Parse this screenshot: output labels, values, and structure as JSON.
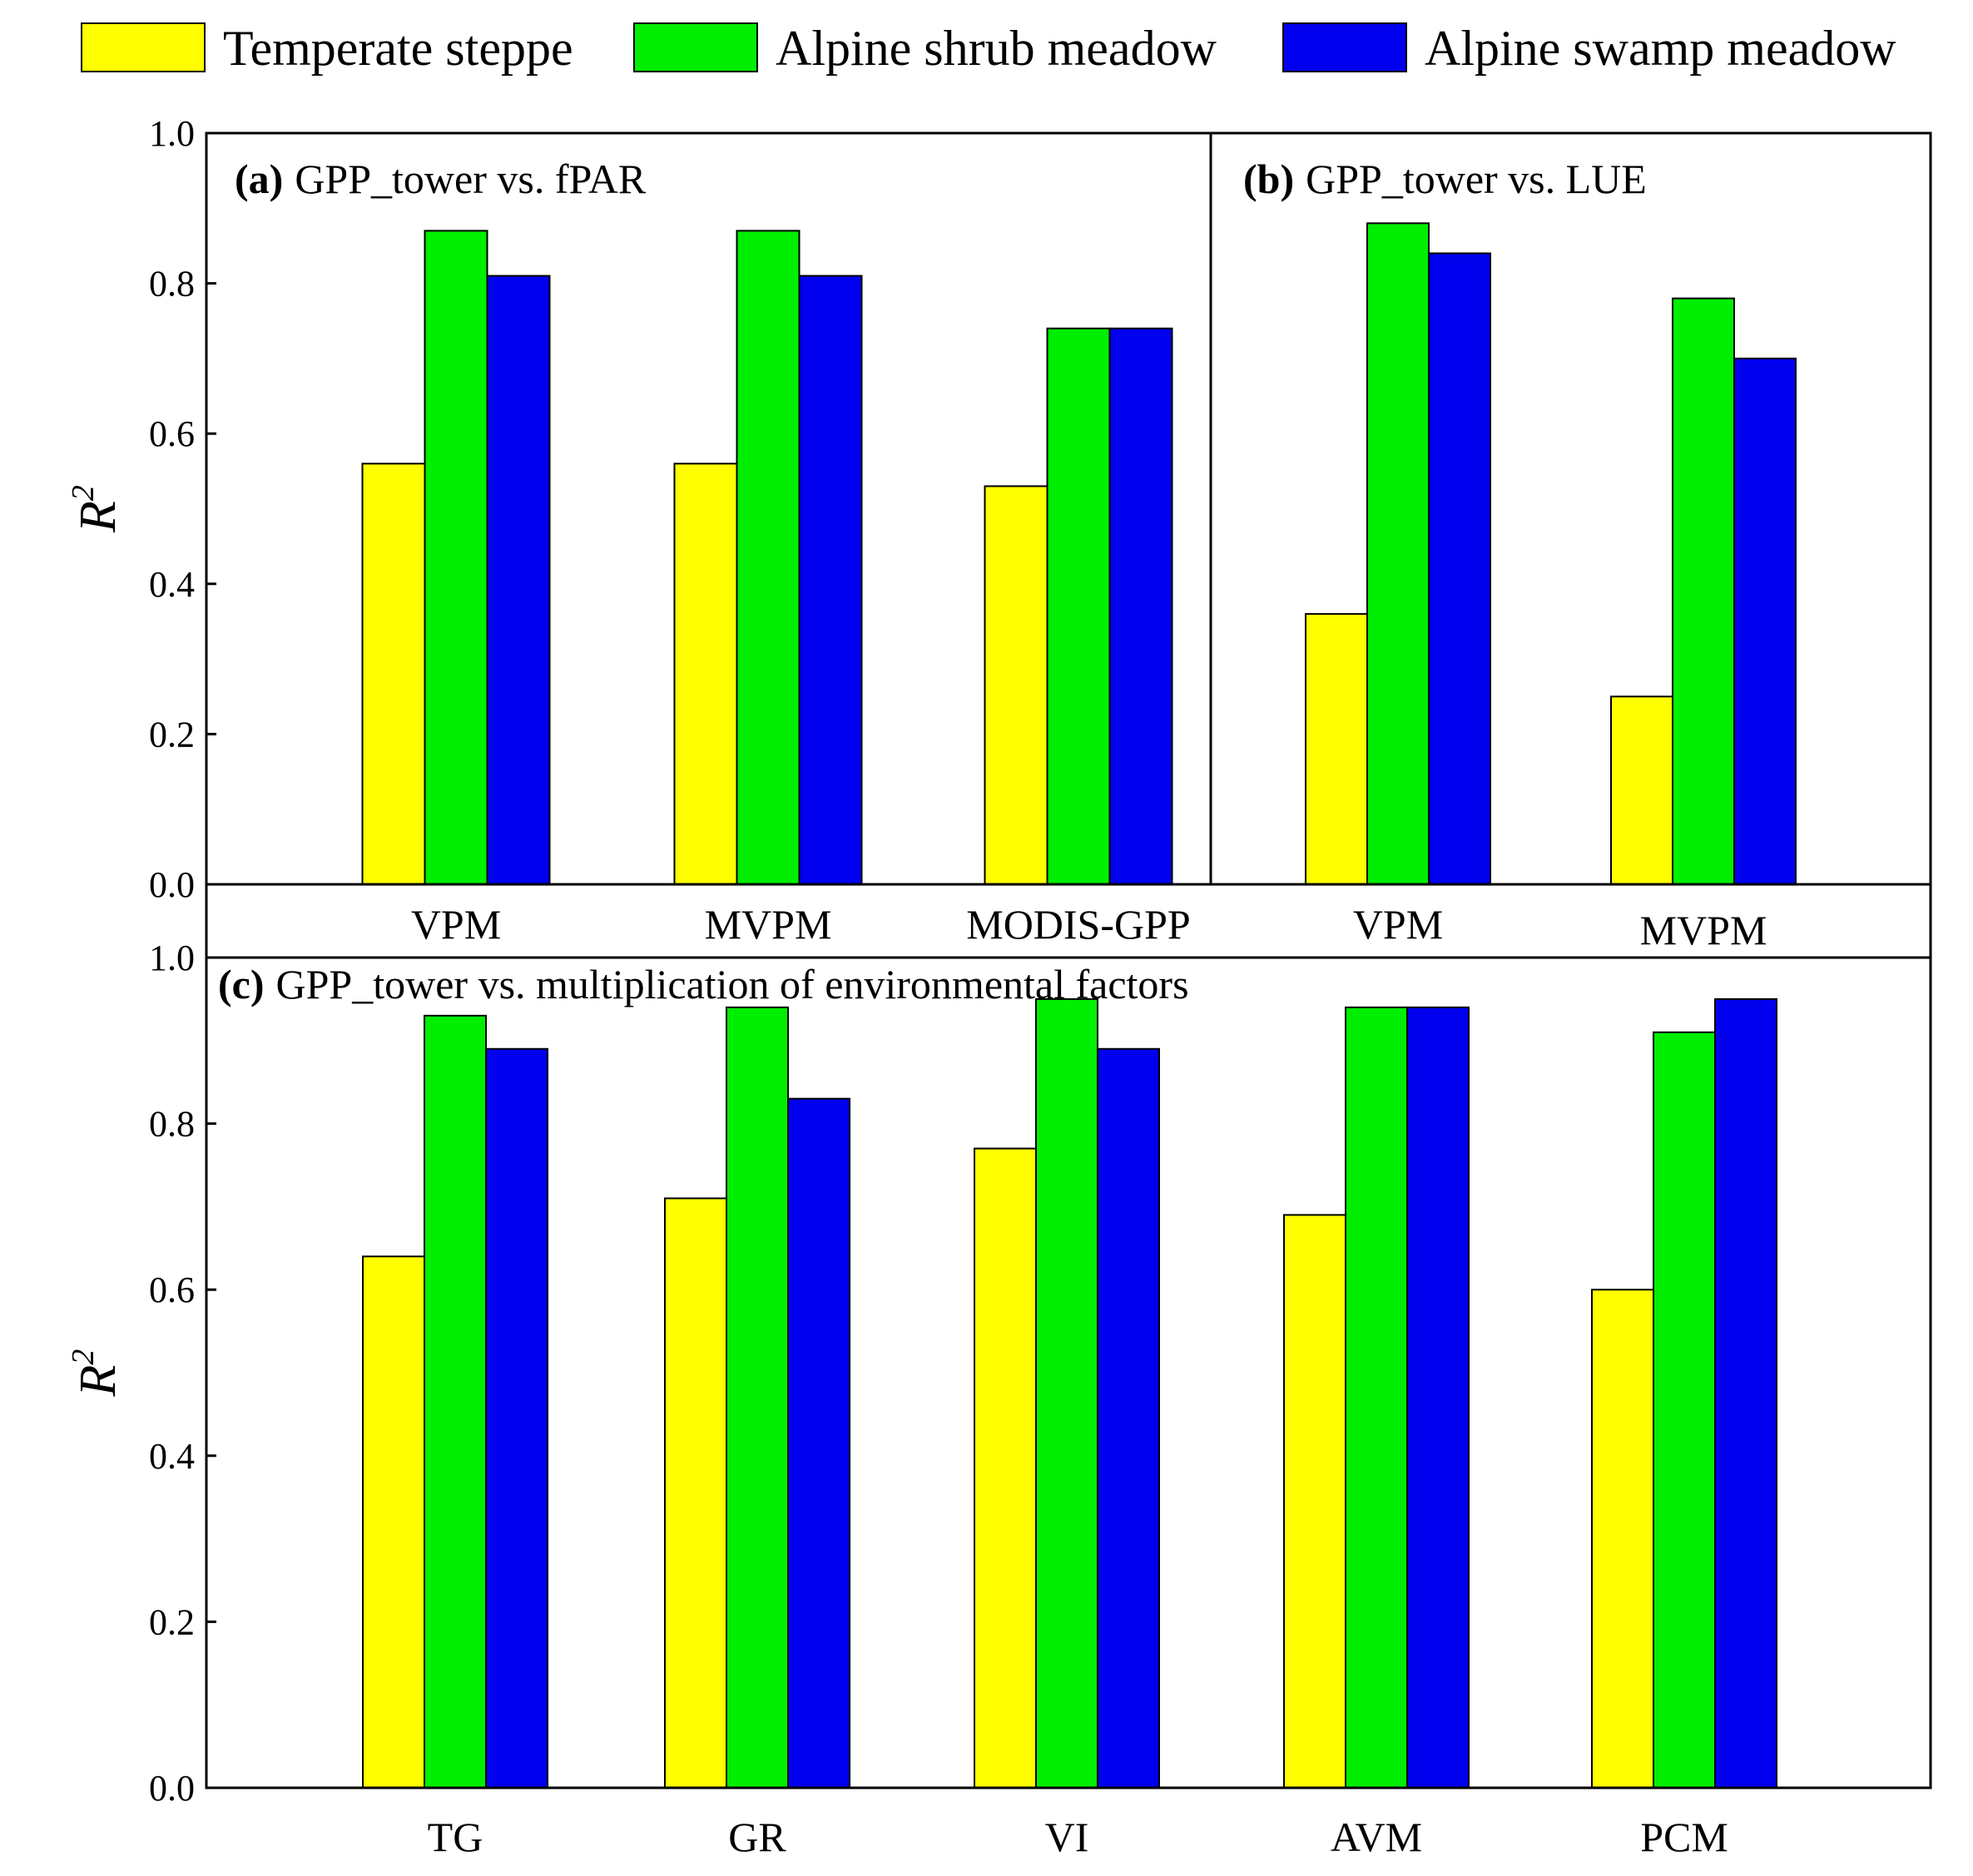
{
  "legend": [
    {
      "label": "Temperate steppe",
      "color": "#ffff00"
    },
    {
      "label": "Alpine shrub meadow",
      "color": "#00ee00"
    },
    {
      "label": "Alpine swamp meadow",
      "color": "#0000ee"
    }
  ],
  "y_axis_label": "R",
  "y_axis_label_sup": "2",
  "chart_data": [
    {
      "id": "a",
      "type": "bar",
      "tag": "(a)",
      "title": "GPP_tower vs. fPAR",
      "ylim": [
        0,
        1.0
      ],
      "yticks": [
        "0.0",
        "0.2",
        "0.4",
        "0.6",
        "0.8",
        "1.0"
      ],
      "ylabel": "R2",
      "categories": [
        "VPM",
        "MVPM",
        "MODIS-GPP"
      ],
      "series": [
        {
          "name": "Temperate steppe",
          "values": [
            0.56,
            0.56,
            0.53
          ]
        },
        {
          "name": "Alpine shrub meadow",
          "values": [
            0.87,
            0.87,
            0.74
          ]
        },
        {
          "name": "Alpine swamp meadow",
          "values": [
            0.81,
            0.81,
            0.74
          ]
        }
      ]
    },
    {
      "id": "b",
      "type": "bar",
      "tag": "(b)",
      "title": "GPP_tower vs. LUE",
      "ylim": [
        0,
        1.0
      ],
      "categories": [
        "VPM",
        "MVPM"
      ],
      "series": [
        {
          "name": "Temperate steppe",
          "values": [
            0.36,
            0.25
          ]
        },
        {
          "name": "Alpine shrub meadow",
          "values": [
            0.88,
            0.78
          ]
        },
        {
          "name": "Alpine swamp meadow",
          "values": [
            0.84,
            0.7
          ]
        }
      ]
    },
    {
      "id": "c",
      "type": "bar",
      "tag": "(c)",
      "title": "GPP_tower vs. multiplication of environmental factors",
      "ylim": [
        0,
        1.0
      ],
      "yticks": [
        "0.0",
        "0.2",
        "0.4",
        "0.6",
        "0.8",
        "1.0"
      ],
      "ylabel": "R2",
      "categories": [
        "TG",
        "GR",
        "VI",
        "AVM",
        "PCM"
      ],
      "series": [
        {
          "name": "Temperate steppe",
          "values": [
            0.64,
            0.71,
            0.77,
            0.69,
            0.6
          ]
        },
        {
          "name": "Alpine shrub meadow",
          "values": [
            0.93,
            0.94,
            0.95,
            0.94,
            0.91
          ]
        },
        {
          "name": "Alpine swamp meadow",
          "values": [
            0.89,
            0.83,
            0.89,
            0.94,
            0.95
          ]
        }
      ]
    }
  ]
}
